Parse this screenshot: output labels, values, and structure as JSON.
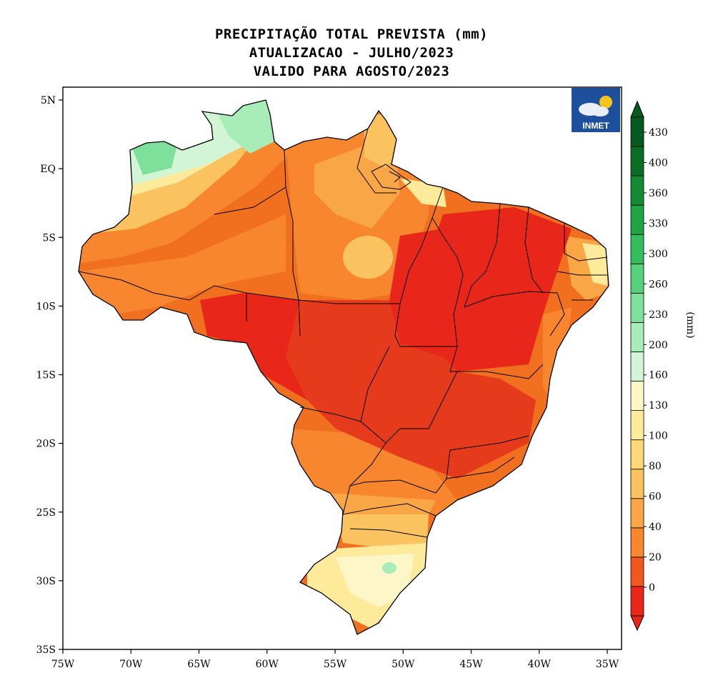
{
  "title": {
    "line1": "PRECIPITAÇÃO TOTAL PREVISTA (mm)",
    "line2": "ATUALIZACAO - JULHO/2023",
    "line3": "VALIDO PARA AGOSTO/2023"
  },
  "map": {
    "lat_ticks": [
      "5N",
      "EQ",
      "5S",
      "10S",
      "15S",
      "20S",
      "25S",
      "30S",
      "35S"
    ],
    "lon_ticks": [
      "75W",
      "70W",
      "65W",
      "60W",
      "55W",
      "50W",
      "45W",
      "40W",
      "35W"
    ],
    "lon_range": [
      -75,
      -35
    ],
    "lat_range": [
      -35,
      5
    ],
    "logo_text": "INMET"
  },
  "colorbar": {
    "unit_label": "(mm)",
    "levels": [
      "0",
      "20",
      "40",
      "60",
      "80",
      "100",
      "130",
      "160",
      "200",
      "230",
      "260",
      "300",
      "330",
      "360",
      "400",
      "430"
    ],
    "colors": [
      "#e8261a",
      "#f4571e",
      "#f7862e",
      "#f9a746",
      "#fbc35f",
      "#fcd876",
      "#fdea9a",
      "#fdf6c8",
      "#d2f5d5",
      "#a8ecb8",
      "#7ee09b",
      "#56d17e",
      "#34bd5e",
      "#1fa545",
      "#138a33",
      "#0b6d24",
      "#075a1d"
    ]
  }
}
